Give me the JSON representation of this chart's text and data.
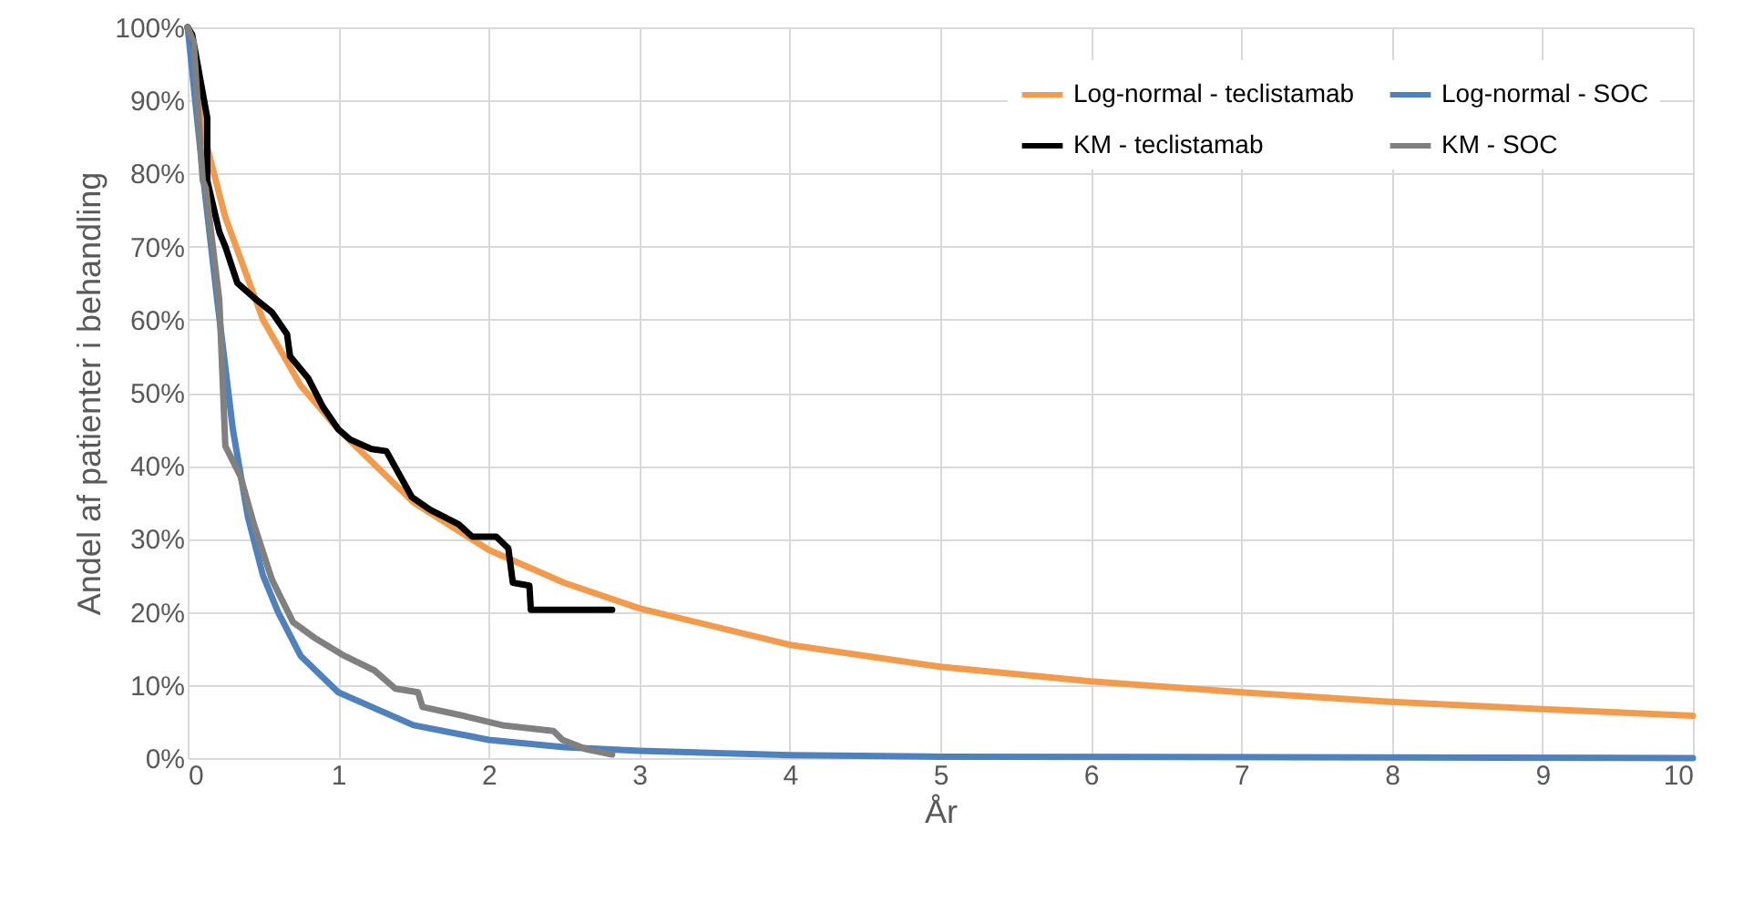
{
  "chart_data": {
    "type": "line",
    "xlabel": "År",
    "ylabel": "Andel af patienter i behandling",
    "xlim": [
      0,
      10
    ],
    "xticks": [
      0,
      1,
      2,
      3,
      4,
      5,
      6,
      7,
      8,
      9,
      10
    ],
    "ylim": [
      0,
      100
    ],
    "yticks": [
      {
        "value": 0,
        "label": "0%"
      },
      {
        "value": 10,
        "label": "10%"
      },
      {
        "value": 20,
        "label": "20%"
      },
      {
        "value": 30,
        "label": "30%"
      },
      {
        "value": 40,
        "label": "40%"
      },
      {
        "value": 50,
        "label": "50%"
      },
      {
        "value": 60,
        "label": "60%"
      },
      {
        "value": 70,
        "label": "70%"
      },
      {
        "value": 80,
        "label": "80%"
      },
      {
        "value": 90,
        "label": "90%"
      },
      {
        "value": 100,
        "label": "100%"
      }
    ],
    "grid": true,
    "legend": "top right",
    "marker": "none",
    "line_style": "solid",
    "series": [
      {
        "name": "Log-normal - teclistamab",
        "color": "#f29b4c",
        "x": [
          0,
          0.1,
          0.25,
          0.5,
          0.75,
          1,
          1.5,
          2,
          2.5,
          3,
          4,
          5,
          6,
          7,
          8,
          9,
          10
        ],
        "values": [
          100,
          86,
          74,
          60,
          51,
          45,
          35,
          28.5,
          24,
          20.5,
          15.5,
          12.5,
          10.5,
          9,
          7.7,
          6.7,
          5.8
        ]
      },
      {
        "name": "Log-normal - SOC",
        "color": "#4f81bd",
        "x": [
          0,
          0.1,
          0.2,
          0.3,
          0.4,
          0.5,
          0.6,
          0.75,
          1,
          1.5,
          2,
          2.5,
          3,
          4,
          5,
          10
        ],
        "values": [
          100,
          80,
          62,
          45,
          33,
          25,
          20,
          14,
          9,
          4.5,
          2.5,
          1.5,
          1,
          0.4,
          0.2,
          0
        ]
      },
      {
        "name": "KM - teclistamab",
        "color": "#000000",
        "x": [
          0,
          0.03,
          0.13,
          0.13,
          0.21,
          0.25,
          0.33,
          0.44,
          0.56,
          0.66,
          0.68,
          0.8,
          0.9,
          1.0,
          1.08,
          1.22,
          1.32,
          1.49,
          1.61,
          1.8,
          1.89,
          2.05,
          2.13,
          2.16,
          2.27,
          2.28,
          2.82
        ],
        "values": [
          100,
          99,
          87.6,
          79,
          72,
          70,
          65,
          63,
          61,
          58,
          55,
          52,
          48,
          45,
          43.6,
          42.3,
          42,
          35.7,
          34,
          32,
          30.3,
          30.3,
          28.7,
          24,
          23.6,
          20.3,
          20.3
        ]
      },
      {
        "name": "KM - SOC",
        "color": "#808080",
        "x": [
          0,
          0.04,
          0.1,
          0.12,
          0.21,
          0.25,
          0.35,
          0.44,
          0.56,
          0.7,
          0.84,
          1.04,
          1.24,
          1.38,
          1.53,
          1.56,
          1.85,
          2.09,
          2.43,
          2.49,
          2.65,
          2.82
        ],
        "values": [
          100,
          98,
          79,
          78,
          62.7,
          42.7,
          38.6,
          32,
          24.4,
          18.6,
          16.5,
          14,
          12,
          9.5,
          9,
          7,
          5.7,
          4.5,
          3.7,
          2.5,
          1.2,
          0.5
        ]
      }
    ]
  }
}
